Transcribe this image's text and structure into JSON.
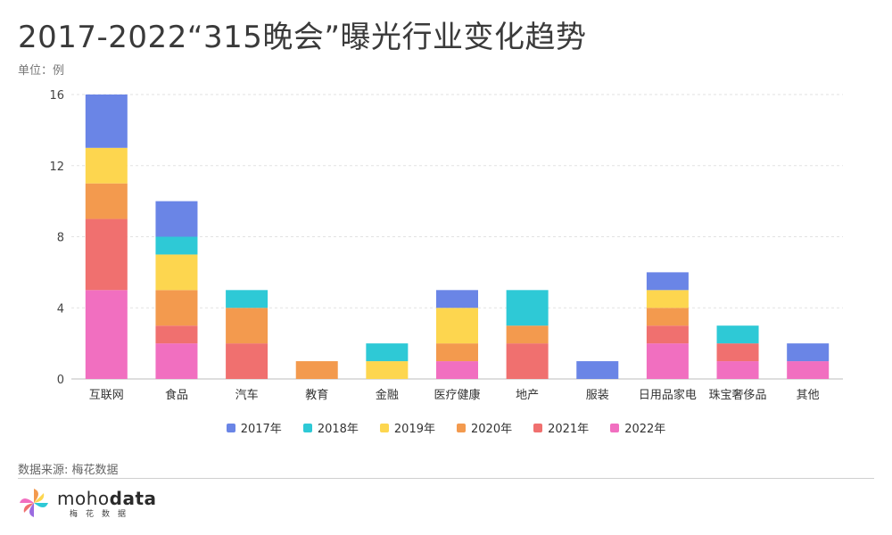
{
  "title": "2017-2022“315晚会”曝光行业变化趋势",
  "unit": "单位：例",
  "source": "数据来源: 梅花数据",
  "logo": {
    "word_light": "moho",
    "word_bold": "data",
    "subtitle": "梅花数据"
  },
  "colors": {
    "2017年": "#6a85e6",
    "2018年": "#2ec9d6",
    "2019年": "#fdd64f",
    "2020年": "#f39a4e",
    "2021年": "#f0706f",
    "2022年": "#f16fc0"
  },
  "chart_data": {
    "type": "bar",
    "stacked": true,
    "categories": [
      "互联网",
      "食品",
      "汽车",
      "教育",
      "金融",
      "医疗健康",
      "地产",
      "服装",
      "日用品家电",
      "珠宝奢侈品",
      "其他"
    ],
    "series": [
      {
        "name": "2022年",
        "values": [
          5,
          2,
          0,
          0,
          0,
          1,
          0,
          0,
          2,
          1,
          1
        ]
      },
      {
        "name": "2021年",
        "values": [
          4,
          1,
          2,
          0,
          0,
          0,
          2,
          0,
          1,
          1,
          0
        ]
      },
      {
        "name": "2020年",
        "values": [
          2,
          2,
          2,
          1,
          0,
          1,
          1,
          0,
          1,
          0,
          0
        ]
      },
      {
        "name": "2019年",
        "values": [
          2,
          2,
          0,
          0,
          1,
          2,
          0,
          0,
          1,
          0,
          0
        ]
      },
      {
        "name": "2018年",
        "values": [
          0,
          1,
          1,
          0,
          1,
          0,
          2,
          0,
          0,
          1,
          0
        ]
      },
      {
        "name": "2017年",
        "values": [
          3,
          2,
          0,
          0,
          0,
          1,
          0,
          1,
          1,
          0,
          1
        ]
      }
    ],
    "legend_order": [
      "2017年",
      "2018年",
      "2019年",
      "2020年",
      "2021年",
      "2022年"
    ],
    "yticks": [
      0,
      4,
      8,
      12,
      16
    ],
    "ylim": [
      0,
      16
    ],
    "grid": true,
    "legend_position": "bottom"
  }
}
